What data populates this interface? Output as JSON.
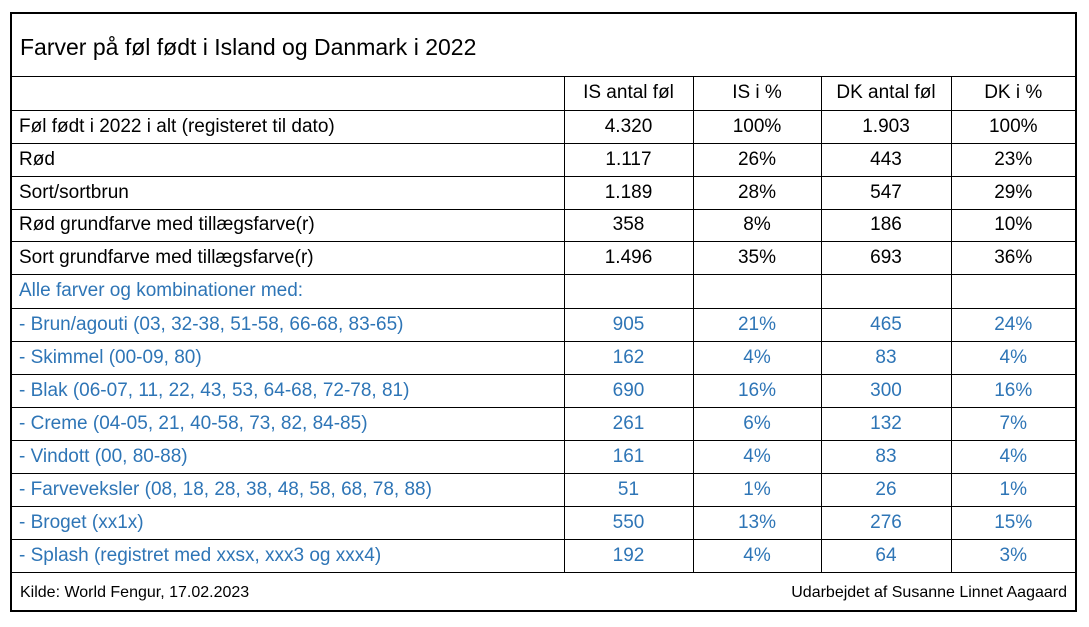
{
  "title": "Farver på føl født i Island og Danmark i 2022",
  "columns": [
    "",
    "IS antal føl",
    "IS i %",
    "DK antal føl",
    "DK i %"
  ],
  "rows": [
    {
      "label": "Føl født i 2022 i alt (registeret til dato)",
      "is_count": "4.320",
      "is_pct": "100%",
      "dk_count": "1.903",
      "dk_pct": "100%"
    },
    {
      "label": "Rød",
      "is_count": "1.117",
      "is_pct": "26%",
      "dk_count": "443",
      "dk_pct": "23%"
    },
    {
      "label": "Sort/sortbrun",
      "is_count": "1.189",
      "is_pct": "28%",
      "dk_count": "547",
      "dk_pct": "29%"
    },
    {
      "label": "Rød grundfarve med tillægsfarve(r)",
      "is_count": "358",
      "is_pct": "8%",
      "dk_count": "186",
      "dk_pct": "10%"
    },
    {
      "label": "Sort grundfarve med tillægsfarve(r)",
      "is_count": "1.496",
      "is_pct": "35%",
      "dk_count": "693",
      "dk_pct": "36%"
    }
  ],
  "combinations_heading": "Alle farver og kombinationer med:",
  "combination_rows": [
    {
      "label": "- Brun/agouti (03, 32-38, 51-58, 66-68, 83-65)",
      "is_count": "905",
      "is_pct": "21%",
      "dk_count": "465",
      "dk_pct": "24%"
    },
    {
      "label": "- Skimmel (00-09, 80)",
      "is_count": "162",
      "is_pct": "4%",
      "dk_count": "83",
      "dk_pct": "4%"
    },
    {
      "label": "- Blak (06-07, 11, 22, 43, 53, 64-68, 72-78, 81)",
      "is_count": "690",
      "is_pct": "16%",
      "dk_count": "300",
      "dk_pct": "16%"
    },
    {
      "label": "- Creme (04-05, 21, 40-58, 73, 82, 84-85)",
      "is_count": "261",
      "is_pct": "6%",
      "dk_count": "132",
      "dk_pct": "7%"
    },
    {
      "label": "- Vindott (00, 80-88)",
      "is_count": "161",
      "is_pct": "4%",
      "dk_count": "83",
      "dk_pct": "4%"
    },
    {
      "label": "- Farveveksler (08, 18, 28, 38, 48, 58, 68, 78, 88)",
      "is_count": "51",
      "is_pct": "1%",
      "dk_count": "26",
      "dk_pct": "1%"
    },
    {
      "label": "- Broget (xx1x)",
      "is_count": "550",
      "is_pct": "13%",
      "dk_count": "276",
      "dk_pct": "15%"
    },
    {
      "label": "- Splash (registret med xxsx, xxx3 og xxx4)",
      "is_count": "192",
      "is_pct": "4%",
      "dk_count": "64",
      "dk_pct": "3%"
    }
  ],
  "footer": {
    "source": "Kilde: World Fengur, 17.02.2023",
    "author": "Udarbejdet af Susanne Linnet Aagaard"
  },
  "colors": {
    "text": "#000000",
    "blue": "#2E75B6",
    "border": "#000000"
  }
}
